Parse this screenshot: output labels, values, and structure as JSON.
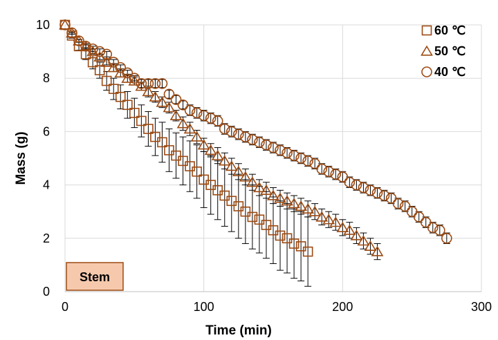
{
  "chart_data": {
    "type": "scatter",
    "xlabel": "Time (min)",
    "ylabel": "Mass (g)",
    "xlim": [
      0,
      300
    ],
    "ylim": [
      0,
      10
    ],
    "xticks": [
      0,
      100,
      200,
      300
    ],
    "yticks": [
      0,
      2,
      4,
      6,
      8,
      10
    ],
    "grid": "vertical and horizontal major gridlines",
    "legend_position": "top-right",
    "annotation": "Stem",
    "colors": {
      "marker": "#9c4a12",
      "error_bar": "#000000",
      "grid": "#d9d9d9",
      "badge_fill": "#f6c9ad",
      "badge_border": "#9c4a12"
    },
    "series": [
      {
        "name": "60 ℃",
        "marker": "square",
        "x": [
          0,
          5,
          10,
          15,
          20,
          25,
          30,
          35,
          40,
          45,
          50,
          55,
          60,
          65,
          70,
          75,
          80,
          85,
          90,
          95,
          100,
          105,
          110,
          115,
          120,
          125,
          130,
          135,
          140,
          145,
          150,
          155,
          160,
          165,
          170,
          175
        ],
        "y": [
          10,
          9.6,
          9.2,
          8.9,
          8.6,
          8.3,
          7.9,
          7.6,
          7.3,
          7.0,
          6.7,
          6.4,
          6.1,
          5.8,
          5.6,
          5.3,
          5.1,
          4.9,
          4.7,
          4.5,
          4.2,
          4.0,
          3.8,
          3.6,
          3.4,
          3.2,
          3.0,
          2.8,
          2.7,
          2.5,
          2.3,
          2.1,
          2.0,
          1.8,
          1.7,
          1.5
        ],
        "error": [
          0,
          0.1,
          0.15,
          0.2,
          0.25,
          0.3,
          0.35,
          0.4,
          0.45,
          0.5,
          0.55,
          0.6,
          0.65,
          0.7,
          0.75,
          0.8,
          0.85,
          0.9,
          0.95,
          1.0,
          1.05,
          1.1,
          1.1,
          1.15,
          1.15,
          1.2,
          1.2,
          1.2,
          1.25,
          1.25,
          1.25,
          1.3,
          1.3,
          1.3,
          1.3,
          1.3
        ]
      },
      {
        "name": "50 ℃",
        "marker": "triangle",
        "x": [
          0,
          5,
          10,
          15,
          20,
          25,
          30,
          35,
          40,
          45,
          50,
          55,
          60,
          65,
          70,
          75,
          80,
          85,
          90,
          95,
          100,
          105,
          110,
          115,
          120,
          125,
          130,
          135,
          140,
          145,
          150,
          155,
          160,
          165,
          170,
          175,
          180,
          185,
          190,
          195,
          200,
          205,
          210,
          215,
          220,
          225
        ],
        "y": [
          10,
          9.7,
          9.4,
          9.2,
          9.0,
          8.8,
          8.6,
          8.4,
          8.2,
          8.0,
          7.9,
          7.7,
          7.5,
          7.3,
          7.1,
          6.9,
          6.6,
          6.3,
          6.1,
          5.8,
          5.5,
          5.3,
          5.1,
          4.9,
          4.7,
          4.5,
          4.3,
          4.1,
          3.9,
          3.8,
          3.6,
          3.5,
          3.4,
          3.3,
          3.2,
          3.1,
          3.0,
          2.8,
          2.7,
          2.6,
          2.4,
          2.3,
          2.1,
          1.9,
          1.7,
          1.5
        ],
        "error": [
          0,
          0.05,
          0.05,
          0.1,
          0.1,
          0.1,
          0.1,
          0.15,
          0.15,
          0.15,
          0.15,
          0.15,
          0.2,
          0.2,
          0.2,
          0.2,
          0.2,
          0.25,
          0.25,
          0.25,
          0.25,
          0.25,
          0.3,
          0.3,
          0.3,
          0.3,
          0.3,
          0.3,
          0.3,
          0.3,
          0.3,
          0.3,
          0.3,
          0.3,
          0.3,
          0.3,
          0.3,
          0.3,
          0.3,
          0.3,
          0.3,
          0.3,
          0.3,
          0.3,
          0.3,
          0.3
        ]
      },
      {
        "name": "40 ℃",
        "marker": "circle",
        "x": [
          0,
          5,
          10,
          15,
          20,
          25,
          30,
          35,
          40,
          45,
          50,
          55,
          60,
          65,
          70,
          75,
          80,
          85,
          90,
          95,
          100,
          105,
          110,
          115,
          120,
          125,
          130,
          135,
          140,
          145,
          150,
          155,
          160,
          165,
          170,
          175,
          180,
          185,
          190,
          195,
          200,
          205,
          210,
          215,
          220,
          225,
          230,
          235,
          240,
          245,
          250,
          255,
          260,
          265,
          270,
          275
        ],
        "y": [
          10,
          9.7,
          9.4,
          9.2,
          9.1,
          9.0,
          8.9,
          8.6,
          8.4,
          8.2,
          8.0,
          7.8,
          7.8,
          7.8,
          7.8,
          7.4,
          7.2,
          7.0,
          6.8,
          6.7,
          6.6,
          6.5,
          6.4,
          6.1,
          6.0,
          5.9,
          5.8,
          5.7,
          5.6,
          5.5,
          5.4,
          5.3,
          5.2,
          5.1,
          5.0,
          4.9,
          4.8,
          4.6,
          4.5,
          4.4,
          4.3,
          4.1,
          4.0,
          3.9,
          3.8,
          3.7,
          3.6,
          3.5,
          3.3,
          3.2,
          3.0,
          2.8,
          2.6,
          2.4,
          2.3,
          2.0
        ],
        "error": [
          0,
          0.05,
          0.05,
          0.05,
          0.1,
          0.1,
          0.1,
          0.1,
          0.1,
          0.1,
          0.1,
          0.15,
          0.15,
          0.15,
          0.15,
          0.15,
          0.15,
          0.15,
          0.2,
          0.2,
          0.2,
          0.2,
          0.2,
          0.2,
          0.2,
          0.2,
          0.2,
          0.2,
          0.2,
          0.2,
          0.2,
          0.2,
          0.2,
          0.2,
          0.2,
          0.2,
          0.2,
          0.2,
          0.2,
          0.2,
          0.2,
          0.2,
          0.2,
          0.2,
          0.2,
          0.2,
          0.2,
          0.2,
          0.2,
          0.2,
          0.2,
          0.2,
          0.2,
          0.2,
          0.2,
          0.2
        ]
      }
    ]
  }
}
